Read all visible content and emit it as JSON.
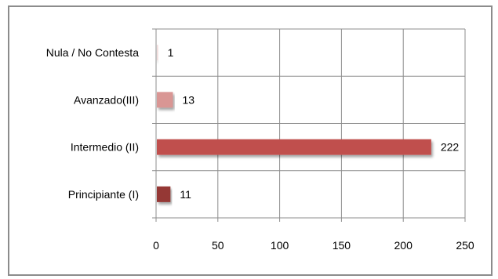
{
  "chart_data": {
    "type": "bar",
    "orientation": "horizontal",
    "title": "",
    "xlabel": "",
    "ylabel": "",
    "categories": [
      "Principiante (I)",
      "Intermedio (II)",
      "Avanzado(III)",
      "Nula / No Contesta"
    ],
    "values": [
      11,
      222,
      13,
      1
    ],
    "data_labels": [
      "11",
      "222",
      "13",
      "1"
    ],
    "bar_colors": [
      "#953735",
      "#c0504d",
      "#d99694",
      "#f2dcdb"
    ],
    "xlim": [
      0,
      250
    ],
    "xticks": [
      "0",
      "50",
      "100",
      "150",
      "200",
      "250"
    ],
    "grid": "vertical",
    "legend": "none"
  }
}
